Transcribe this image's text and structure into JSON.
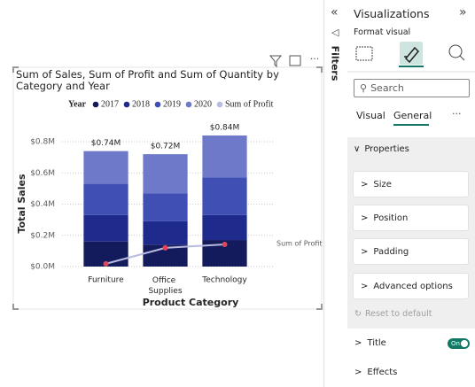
{
  "ui": {
    "filters": "Filters",
    "panel_title": "Visualizations",
    "format_visual": "Format visual",
    "search": "Search",
    "tabs": [
      "Visual",
      "General"
    ],
    "properties": "Properties",
    "sections": [
      "Size",
      "Position",
      "Padding",
      "Advanced options"
    ],
    "reset": "Reset to default",
    "title_section": "Title",
    "toggle": "On",
    "effects": "Effects"
  },
  "chart_data": {
    "type": "bar",
    "stacked": true,
    "title": "Sum of Sales, Sum of Profit and Sum of Quantity by Category and Year",
    "legend_title": "Year",
    "legend": "top",
    "xlabel": "Product Category",
    "ylabel": "Total Sales",
    "categories": [
      "Furniture",
      "Office Supplies",
      "Technology"
    ],
    "series": [
      {
        "name": "2017",
        "color": "#141b5c",
        "values": [
          160000,
          140000,
          170000
        ]
      },
      {
        "name": "2018",
        "color": "#1e2a8c",
        "values": [
          170000,
          150000,
          160000
        ]
      },
      {
        "name": "2019",
        "color": "#3f4fb4",
        "values": [
          200000,
          180000,
          240000
        ]
      },
      {
        "name": "2020",
        "color": "#6f79c9",
        "values": [
          210000,
          250000,
          270000
        ]
      },
      {
        "name": "Sum of Profit",
        "type": "line",
        "color": "#b9badf",
        "marker_color": "#e0475b",
        "values": [
          18000,
          120000,
          142000
        ]
      }
    ],
    "totals": [
      740000,
      720000,
      840000
    ],
    "total_labels": [
      "$0.74M",
      "$0.72M",
      "$0.84M"
    ],
    "ylim": [
      0,
      850000
    ],
    "yticks": [
      {
        "value": 0,
        "label": "$0.0M"
      },
      {
        "value": 200000,
        "label": "$0.2M"
      },
      {
        "value": 400000,
        "label": "$0.4M"
      },
      {
        "value": 600000,
        "label": "$0.6M"
      },
      {
        "value": 800000,
        "label": "$0.8M"
      }
    ],
    "grid": true
  }
}
